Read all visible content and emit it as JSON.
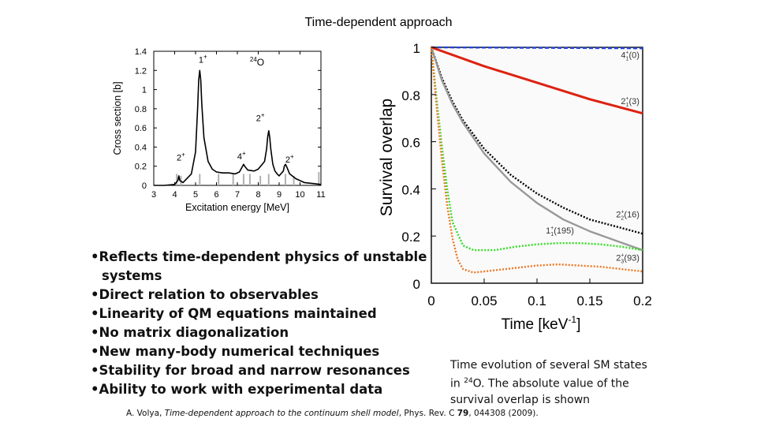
{
  "title": "Time-dependent approach",
  "bullets": [
    {
      "text": "Reflects time-dependent physics of unstable",
      "cont": "systems"
    },
    {
      "text": "Direct relation to observables"
    },
    {
      "text": "Linearity of QM equations maintained"
    },
    {
      "text": "No matrix diagonalization"
    },
    {
      "text": "New many-body numerical techniques"
    },
    {
      "text": "Stability for broad and narrow resonances"
    },
    {
      "text": "Ability to work with experimental data"
    }
  ],
  "bullet_char": "•",
  "caption": {
    "line1": "Time evolution of several SM states",
    "line2_pre": "in ",
    "line2_sup": "24",
    "line2_post": "O. The absolute value of the",
    "line3": "survival overlap is shown"
  },
  "reference": {
    "authors": "A. Volya, ",
    "title_italic": "Time-dependent approach to the continuum shell model",
    "journal_pre": ", Phys. Rev. C ",
    "volume": "79",
    "journal_post": ", 044308 (2009)."
  },
  "chart_data": [
    {
      "type": "line",
      "xlabel": "Excitation energy [MeV]",
      "ylabel": "Cross section [b]",
      "xlim": [
        3,
        11
      ],
      "ylim": [
        0,
        1.4
      ],
      "x_ticks": [
        "3",
        "4",
        "5",
        "6",
        "7",
        "8",
        "9",
        "10",
        "11"
      ],
      "y_ticks": [
        "0",
        "0.2",
        "0.4",
        "0.6",
        "0.8",
        "1",
        "1.2",
        "1.4"
      ],
      "nucleus_label": {
        "sup": "24",
        "text": "O"
      },
      "peaks": [
        {
          "x": 4.2,
          "y": 0.1,
          "width": 0.05,
          "label": "2",
          "sup": "+"
        },
        {
          "x": 5.2,
          "y": 1.2,
          "width": 0.1,
          "label": "1",
          "sup": "+"
        },
        {
          "x": 7.3,
          "y": 0.12,
          "width": 0.06,
          "label": "4",
          "sup": "+"
        },
        {
          "x": 8.5,
          "y": 0.57,
          "width": 0.08,
          "label": "2",
          "sup": "+"
        },
        {
          "x": 9.3,
          "y": 0.12,
          "width": 0.06,
          "label": "2",
          "sup": "+"
        }
      ],
      "background_level": 0.12,
      "curve": {
        "x": [
          3.0,
          3.5,
          4.0,
          4.15,
          4.2,
          4.25,
          4.4,
          4.8,
          5.0,
          5.1,
          5.15,
          5.2,
          5.25,
          5.3,
          5.4,
          5.6,
          5.8,
          6.0,
          6.3,
          6.6,
          6.9,
          7.1,
          7.25,
          7.3,
          7.35,
          7.5,
          7.8,
          8.0,
          8.3,
          8.4,
          8.45,
          8.5,
          8.55,
          8.6,
          8.7,
          8.8,
          8.9,
          9.0,
          9.2,
          9.25,
          9.3,
          9.35,
          9.5,
          9.8,
          10.2,
          10.6,
          11.0
        ],
        "y": [
          0.0,
          0.0,
          0.01,
          0.05,
          0.1,
          0.05,
          0.03,
          0.12,
          0.35,
          0.8,
          1.1,
          1.2,
          1.1,
          0.85,
          0.5,
          0.25,
          0.17,
          0.14,
          0.13,
          0.13,
          0.12,
          0.14,
          0.2,
          0.22,
          0.2,
          0.16,
          0.15,
          0.17,
          0.25,
          0.38,
          0.5,
          0.57,
          0.5,
          0.38,
          0.22,
          0.15,
          0.12,
          0.1,
          0.15,
          0.2,
          0.22,
          0.2,
          0.12,
          0.07,
          0.03,
          0.02,
          0.01
        ]
      },
      "sticks": [
        {
          "x": 4.1,
          "y": 0.12
        },
        {
          "x": 4.3,
          "y": 0.1
        },
        {
          "x": 5.2,
          "y": 0.12
        },
        {
          "x": 6.1,
          "y": 0.12
        },
        {
          "x": 6.8,
          "y": 0.12
        },
        {
          "x": 7.3,
          "y": 0.12
        },
        {
          "x": 7.6,
          "y": 0.12
        },
        {
          "x": 8.1,
          "y": 0.1
        },
        {
          "x": 8.5,
          "y": 0.12
        },
        {
          "x": 9.3,
          "y": 0.12
        },
        {
          "x": 9.7,
          "y": 0.1
        },
        {
          "x": 10.9,
          "y": 0.14
        }
      ],
      "colors": {
        "curve": "#000000",
        "sticks": "#b0b0b0"
      }
    },
    {
      "type": "line",
      "xlabel": "Time [keV",
      "xlabel_sup": "-1",
      "xlabel_end": "]",
      "ylabel": "Survival overlap",
      "xlim": [
        0,
        0.2
      ],
      "ylim": [
        0,
        1
      ],
      "x_ticks": [
        "0",
        "0.05",
        "0.1",
        "0.15",
        "0.2"
      ],
      "y_ticks": [
        "0",
        "0.2",
        "0.4",
        "0.6",
        "0.8",
        "1"
      ],
      "series": [
        {
          "name": "4",
          "sub": "1",
          "sup": "+",
          "suffix": "(0)",
          "color": "#2244dd",
          "style": "dashed",
          "x": [
            0,
            0.05,
            0.1,
            0.15,
            0.2
          ],
          "y": [
            1.0,
            0.999,
            0.998,
            0.997,
            0.996
          ]
        },
        {
          "name": "2",
          "sub": "1",
          "sup": "+",
          "suffix": "(3)",
          "color": "#dd2211",
          "style": "solid",
          "x": [
            0,
            0.05,
            0.1,
            0.15,
            0.2
          ],
          "y": [
            1.0,
            0.92,
            0.85,
            0.78,
            0.72
          ]
        },
        {
          "name": "2",
          "sub": "2",
          "sup": "+",
          "suffix": "(16)",
          "color": "#000000",
          "style": "dotted",
          "x": [
            0,
            0.01,
            0.02,
            0.03,
            0.05,
            0.075,
            0.1,
            0.125,
            0.15,
            0.175,
            0.2
          ],
          "y": [
            1.0,
            0.87,
            0.77,
            0.69,
            0.57,
            0.46,
            0.38,
            0.32,
            0.27,
            0.24,
            0.21
          ]
        },
        {
          "name": "1",
          "sub": "1",
          "sup": "+",
          "suffix": "(195)",
          "color": "#999999",
          "style": "solid",
          "x": [
            0,
            0.01,
            0.02,
            0.03,
            0.05,
            0.075,
            0.1,
            0.125,
            0.15,
            0.175,
            0.2
          ],
          "y": [
            1.0,
            0.86,
            0.76,
            0.68,
            0.55,
            0.43,
            0.34,
            0.27,
            0.22,
            0.18,
            0.14
          ]
        },
        {
          "name": "",
          "color": "#33dd22",
          "style": "dotted",
          "x": [
            0,
            0.005,
            0.01,
            0.015,
            0.02,
            0.03,
            0.04,
            0.06,
            0.08,
            0.1,
            0.12,
            0.14,
            0.16,
            0.18,
            0.2
          ],
          "y": [
            1.0,
            0.78,
            0.58,
            0.4,
            0.26,
            0.16,
            0.14,
            0.14,
            0.155,
            0.165,
            0.17,
            0.17,
            0.165,
            0.155,
            0.14
          ]
        },
        {
          "name": "2",
          "sub": "3",
          "sup": "+",
          "suffix": "(93)",
          "color": "#ee7722",
          "style": "dotted",
          "x": [
            0,
            0.005,
            0.01,
            0.015,
            0.02,
            0.025,
            0.03,
            0.04,
            0.05,
            0.07,
            0.1,
            0.12,
            0.14,
            0.16,
            0.18,
            0.2
          ],
          "y": [
            1.0,
            0.75,
            0.52,
            0.33,
            0.19,
            0.1,
            0.06,
            0.045,
            0.05,
            0.06,
            0.075,
            0.08,
            0.075,
            0.07,
            0.06,
            0.05
          ]
        }
      ]
    }
  ]
}
